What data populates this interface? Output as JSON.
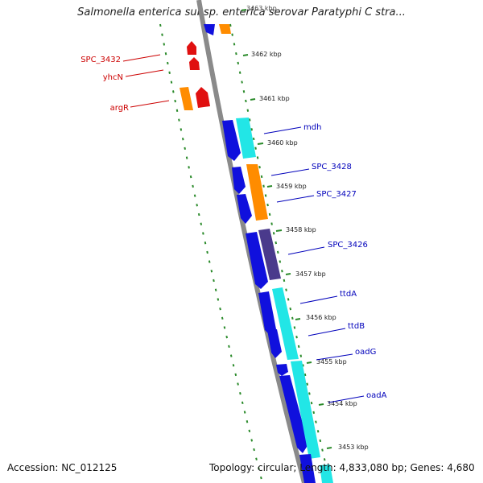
{
  "title": "Salmonella enterica subsp. enterica serovar Paratyphi C stra...",
  "footer": {
    "accession": "Accession: NC_012125",
    "summary": "Topology: circular; Length: 4,833,080 bp; Genes: 4,680"
  },
  "ticks": [
    "3463 kbp",
    "3462 kbp",
    "3461 kbp",
    "3460 kbp",
    "3459 kbp",
    "3458 kbp",
    "3457 kbp",
    "3456 kbp",
    "3455 kbp",
    "3454 kbp",
    "3453 kbp"
  ],
  "genes": [
    {
      "name": "SPC_3432",
      "color": "#cc0000"
    },
    {
      "name": "yhcN",
      "color": "#cc0000"
    },
    {
      "name": "argR",
      "color": "#cc0000"
    },
    {
      "name": "mdh",
      "color": "#0000bb"
    },
    {
      "name": "SPC_3428",
      "color": "#0000bb"
    },
    {
      "name": "SPC_3427",
      "color": "#0000bb"
    },
    {
      "name": "SPC_3426",
      "color": "#0000bb"
    },
    {
      "name": "ttdA",
      "color": "#0000bb"
    },
    {
      "name": "ttdB",
      "color": "#0000bb"
    },
    {
      "name": "oadG",
      "color": "#0000bb"
    },
    {
      "name": "oadA",
      "color": "#0000bb"
    }
  ],
  "colors": {
    "blue": "#1010dd",
    "cyan": "#22e6e6",
    "orange": "#ff8c00",
    "purple": "#4a3a8c",
    "red": "#e01010",
    "backbone": "#8a8a8a",
    "dots": "#2a8a2a"
  }
}
